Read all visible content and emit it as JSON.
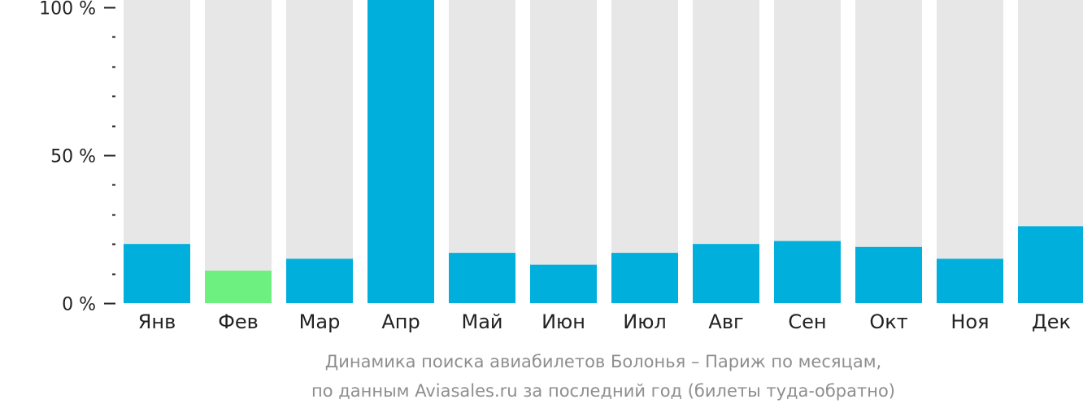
{
  "chart_data": {
    "type": "bar",
    "categories": [
      "Янв",
      "Фев",
      "Мар",
      "Апр",
      "Май",
      "Июн",
      "Июл",
      "Авг",
      "Сен",
      "Окт",
      "Ноя",
      "Дек"
    ],
    "values": [
      20,
      11,
      15,
      100,
      17,
      13,
      17,
      20,
      21,
      19,
      15,
      26
    ],
    "ylim": [
      0,
      100
    ],
    "y_ticks": [
      {
        "value": 100,
        "label": "100 %"
      },
      {
        "value": 50,
        "label": "50 %"
      },
      {
        "value": 0,
        "label": "0 %"
      }
    ],
    "minor_tick_step": 10,
    "caption_lines": [
      "Динамика поиска авиабилетов Болонья – Париж по месяцам,",
      "по данным Aviasales.ru за последний год (билеты туда-обратно)"
    ],
    "highlight_index": 1,
    "colors": {
      "bar": "#00afdc",
      "highlight": "#6ef081",
      "track": "#e7e7e7",
      "axis": "#222222",
      "caption": "#8e8e8e"
    },
    "grid": false,
    "legend": "none"
  }
}
